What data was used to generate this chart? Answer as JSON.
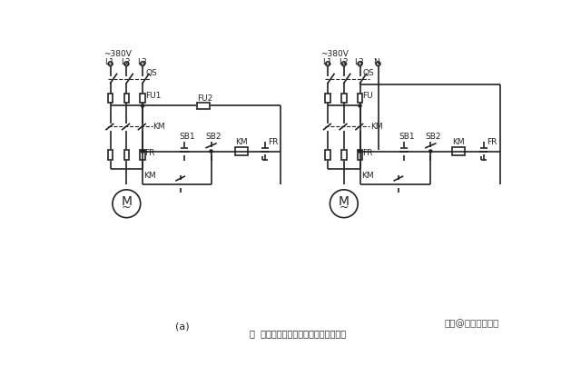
{
  "bg_color": "#ffffff",
  "line_color": "#222222",
  "lw": 1.2,
  "left": {
    "voltage": "~380V",
    "phases": [
      "L1",
      "L2",
      "L3"
    ],
    "qs": "QS",
    "fu1": "FU1",
    "fu2": "FU2",
    "km": "KM",
    "sb1": "SB1",
    "sb2": "SB2",
    "fr_main": "FR",
    "fr_ctrl": "FR"
  },
  "right": {
    "voltage": "~380V",
    "phases": [
      "L1",
      "L2",
      "L3",
      "N"
    ],
    "qs": "QS",
    "fu": "FU",
    "km": "KM",
    "sb1": "SB1",
    "sb2": "SB2",
    "fr_main": "FR",
    "fr_ctrl": "FR"
  },
  "label_a": "(a)",
  "watermark": "头条@技成电工课堂",
  "caption": "图  接触器控制电动机单向运转控制线路"
}
